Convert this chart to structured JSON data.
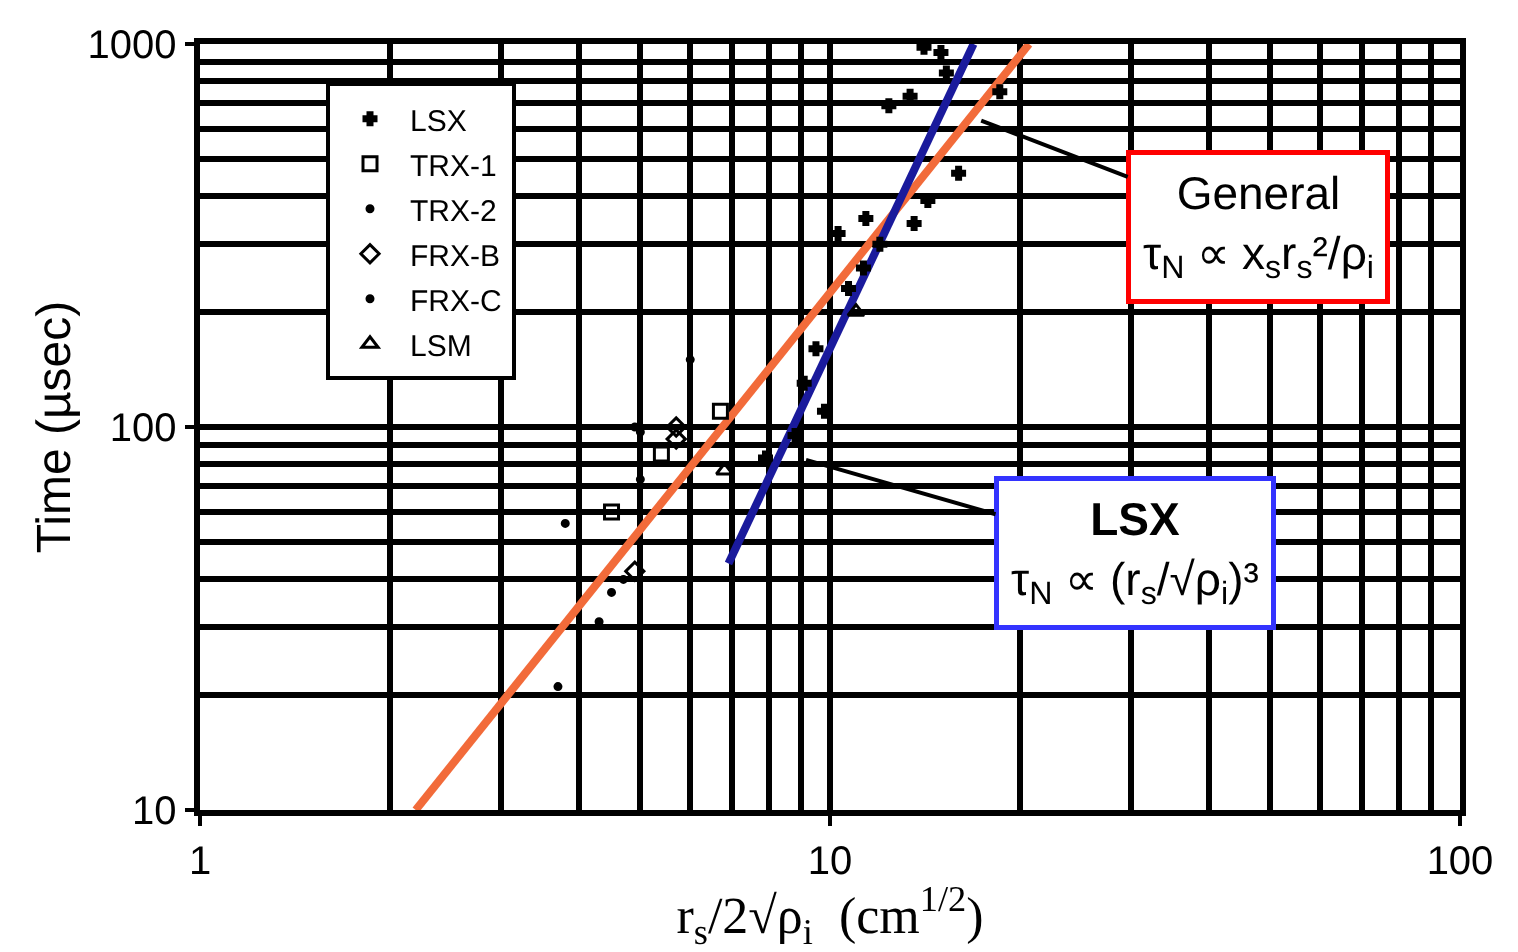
{
  "chart_data": {
    "type": "scatter",
    "xlabel": "r$_{s}$/2√ρ$_{i}$  (cm$^{1/2}$)",
    "ylabel": "Time (µsec)",
    "log": "xy",
    "xlim": [
      1,
      100
    ],
    "ylim": [
      10,
      1000
    ],
    "xticks": [
      1,
      10,
      100
    ],
    "yticks": [
      10,
      100,
      1000
    ],
    "grid": true,
    "legend": "top left",
    "series": [
      {
        "name": "LSX",
        "color": "#000000",
        "marker": "cross",
        "x": [
          14.1,
          15.0,
          15.3,
          12.4,
          13.4,
          18.6,
          16.0,
          14.3,
          13.6,
          11.4,
          10.3,
          12.0,
          11.3,
          10.7,
          9.5,
          9.1,
          9.8,
          8.8,
          7.9
        ],
        "values": [
          980,
          950,
          840,
          690,
          730,
          750,
          460,
          390,
          340,
          350,
          320,
          300,
          260,
          230,
          160,
          130,
          110,
          95,
          83
        ]
      },
      {
        "name": "TRX-1",
        "color": "#000000",
        "marker": "square",
        "x": [
          4.5,
          5.4,
          6.7
        ],
        "values": [
          60,
          85,
          110
        ]
      },
      {
        "name": "TRX-2",
        "color": "#000000",
        "marker": "circle",
        "x": [
          3.8,
          5.0,
          5.0,
          3.7,
          6.0,
          4.9
        ],
        "values": [
          56,
          73,
          97,
          21,
          150,
          100
        ]
      },
      {
        "name": "FRX-B",
        "color": "#000000",
        "marker": "diamond",
        "x": [
          4.9,
          5.7,
          5.7
        ],
        "values": [
          42,
          100,
          93
        ]
      },
      {
        "name": "FRX-C",
        "color": "#000000",
        "marker": "circle",
        "x": [
          4.3,
          4.7,
          4.5
        ],
        "values": [
          31,
          40,
          37
        ]
      },
      {
        "name": "LSM",
        "color": "#000000",
        "marker": "triangle",
        "x": [
          6.8,
          11.0
        ],
        "values": [
          77,
          200
        ]
      },
      {
        "type": "line",
        "color": "#f26b3a",
        "x": [
          2.2,
          20.7
        ],
        "values": [
          10,
          1000
        ]
      },
      {
        "type": "line",
        "color": "#1a1a9c",
        "x": [
          6.9,
          16.9
        ],
        "values": [
          44,
          1000
        ]
      }
    ],
    "annotations": [
      "General\nτ$_{N}$ ∝ x$_{s}$r$_{s}$²/ρ$_{i}$",
      "LSX\nτ$_{N}$ ∝ (r$_{s}$/√ρ$_{i}$)³"
    ]
  }
}
